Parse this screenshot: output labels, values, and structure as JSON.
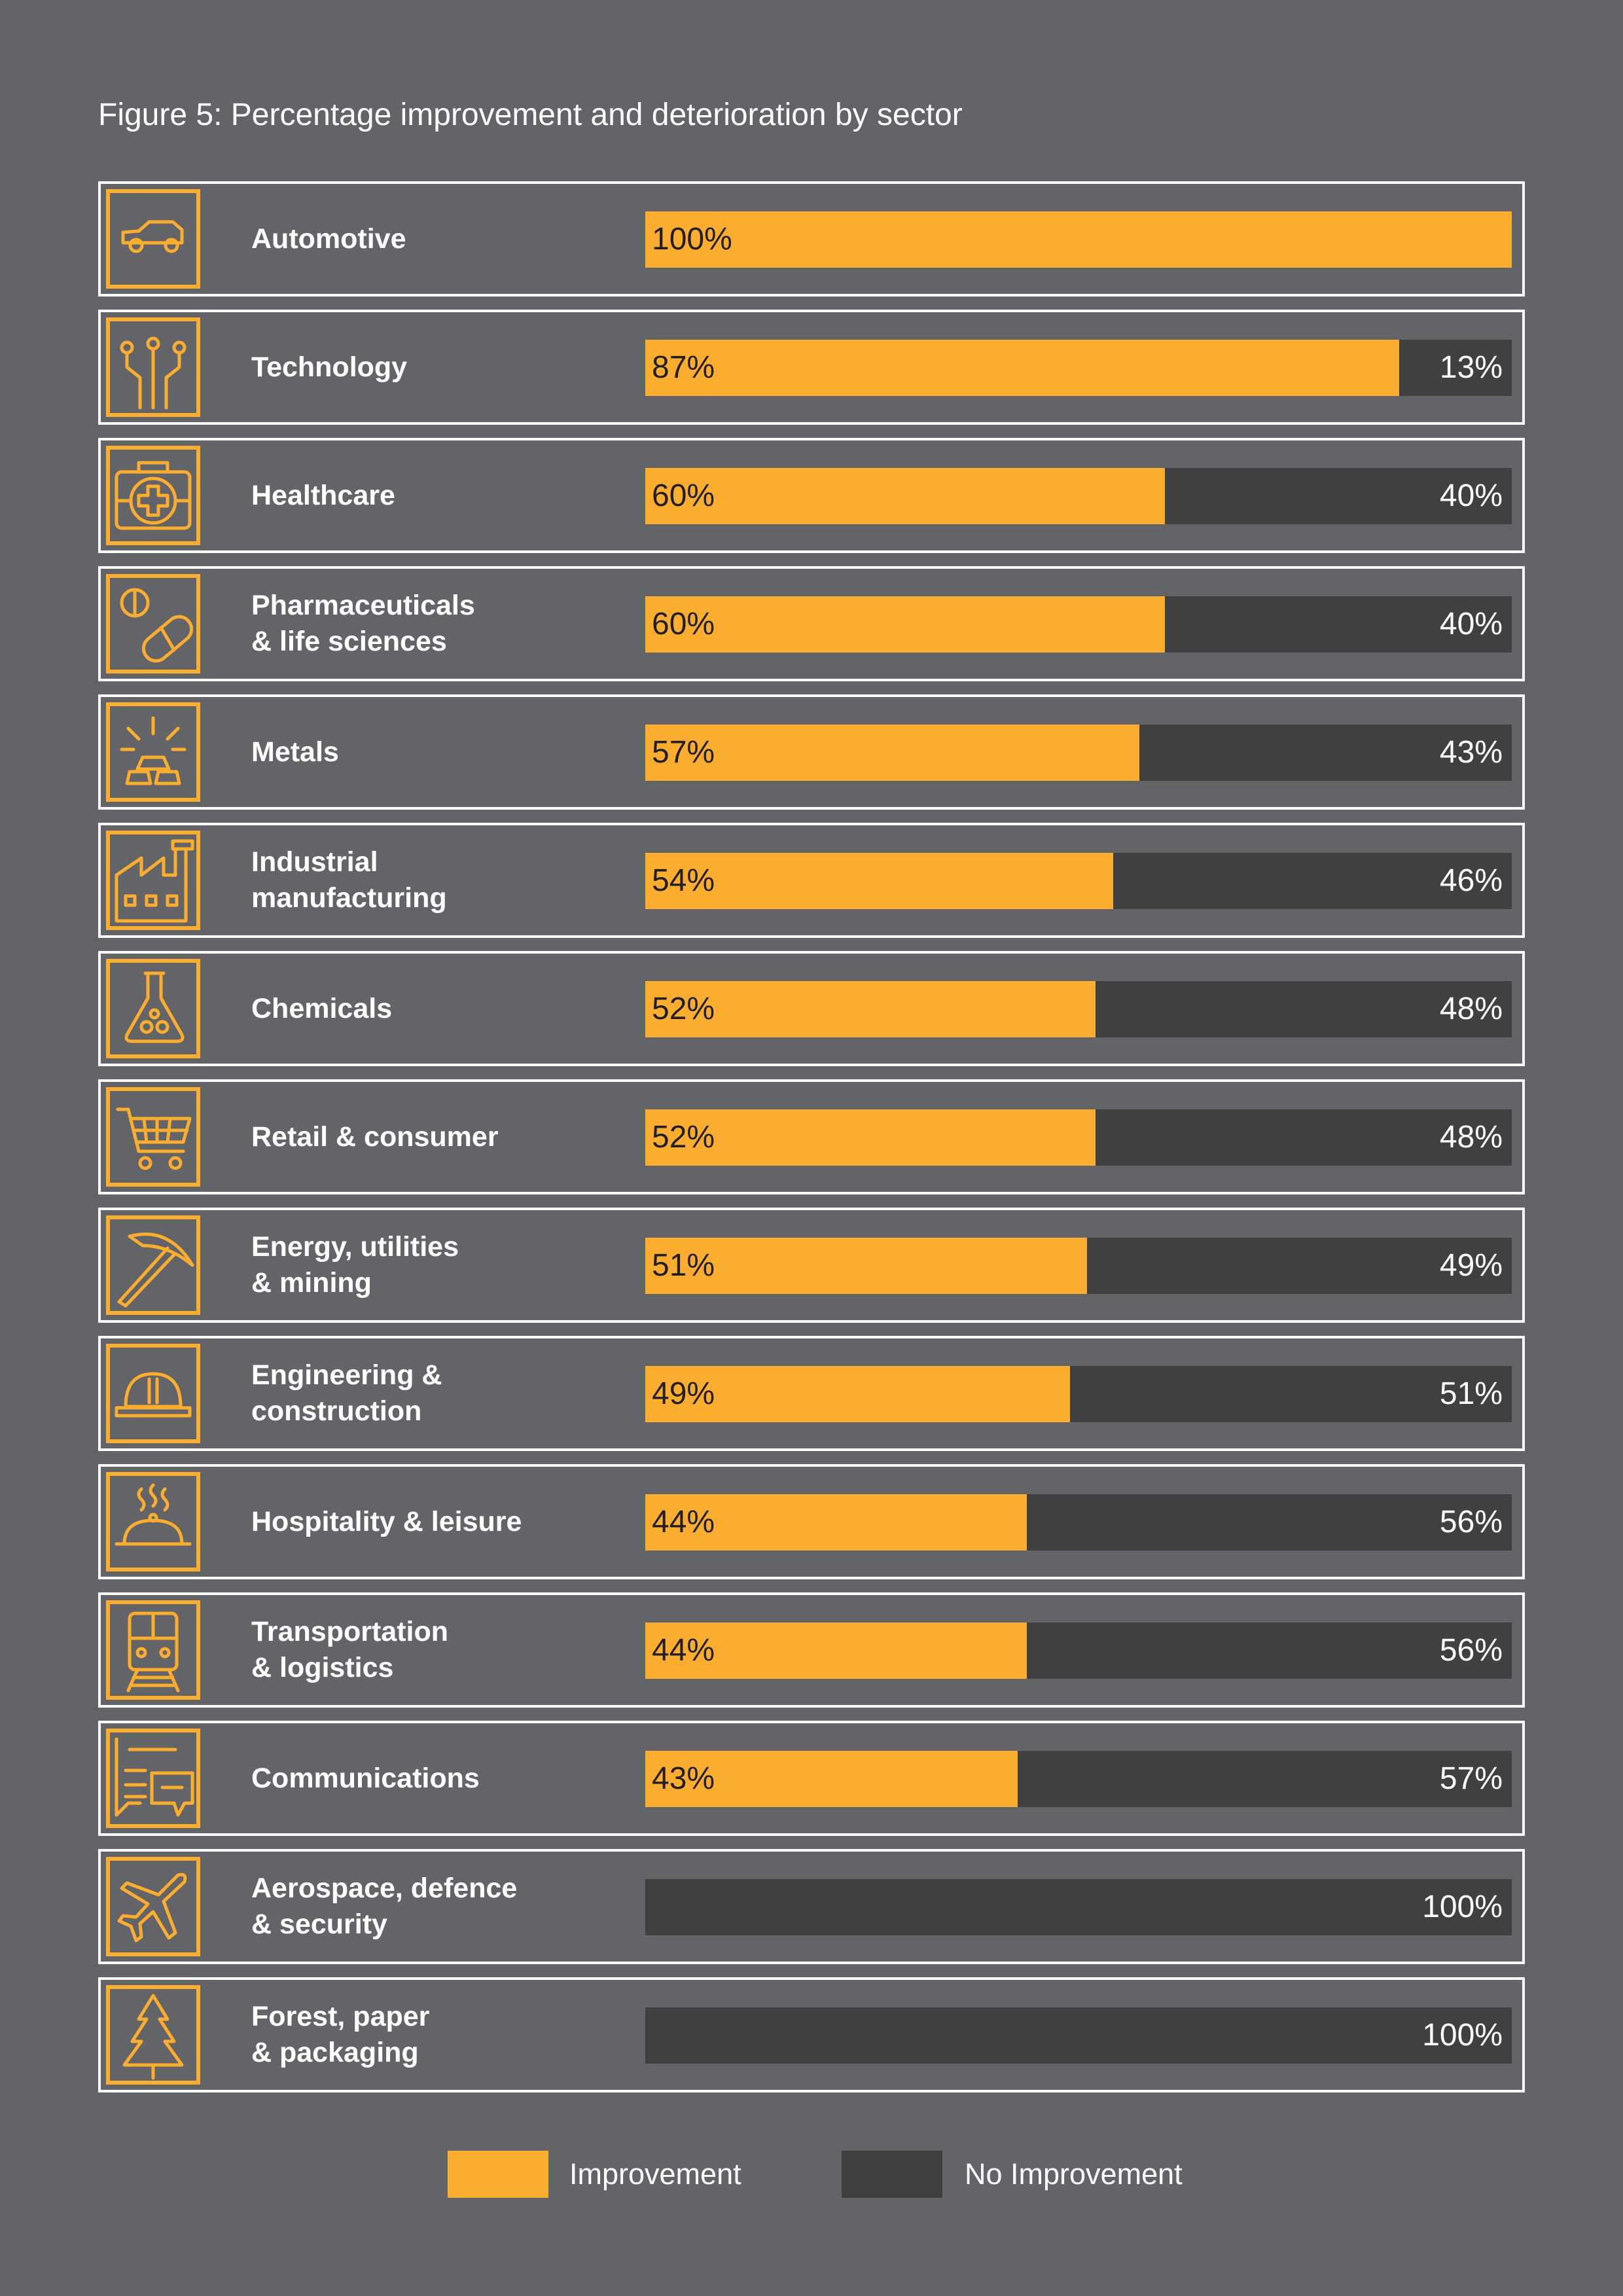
{
  "title": "Figure 5: Percentage improvement and deterioration by sector",
  "colors": {
    "improvement": "#fbad30",
    "no_improvement": "#404041",
    "background": "#636467",
    "icon": "#fbad30"
  },
  "legend": {
    "improvement": "Improvement",
    "no_improvement": "No Improvement"
  },
  "chart_data": {
    "type": "bar",
    "orientation": "horizontal",
    "stacked": true,
    "title": "Figure 5: Percentage improvement and deterioration by sector",
    "categories": [
      "Automotive",
      "Technology",
      "Healthcare",
      "Pharmaceuticals\n& life sciences",
      "Metals",
      "Industrial\nmanufacturing",
      "Chemicals",
      "Retail & consumer",
      "Energy, utilities\n& mining",
      "Engineering &\nconstruction",
      "Hospitality & leisure",
      "Transportation\n& logistics",
      "Communications",
      "Aerospace, defence\n& security",
      "Forest, paper\n& packaging"
    ],
    "icons": [
      "car-icon",
      "circuit-icon",
      "medical-kit-icon",
      "pill-icon",
      "gold-bars-icon",
      "factory-icon",
      "flask-icon",
      "shopping-cart-icon",
      "pickaxe-icon",
      "hard-hat-icon",
      "cloche-icon",
      "train-icon",
      "chat-icon",
      "airplane-icon",
      "tree-icon"
    ],
    "series": [
      {
        "name": "Improvement",
        "values": [
          100,
          87,
          60,
          60,
          57,
          54,
          52,
          52,
          51,
          49,
          44,
          44,
          43,
          0,
          0
        ]
      },
      {
        "name": "No Improvement",
        "values": [
          0,
          13,
          40,
          40,
          43,
          46,
          48,
          48,
          49,
          51,
          56,
          56,
          57,
          100,
          100
        ]
      }
    ],
    "value_labels": {
      "improvement": [
        "100%",
        "87%",
        "60%",
        "60%",
        "57%",
        "54%",
        "52%",
        "52%",
        "51%",
        "49%",
        "44%",
        "44%",
        "43%",
        "",
        ""
      ],
      "no_improvement": [
        "",
        "13%",
        "40%",
        "40%",
        "43%",
        "46%",
        "48%",
        "48%",
        "49%",
        "51%",
        "56%",
        "56%",
        "57%",
        "100%",
        "100%"
      ]
    },
    "xlim": [
      0,
      100
    ],
    "legend_position": "bottom",
    "grid": false
  }
}
